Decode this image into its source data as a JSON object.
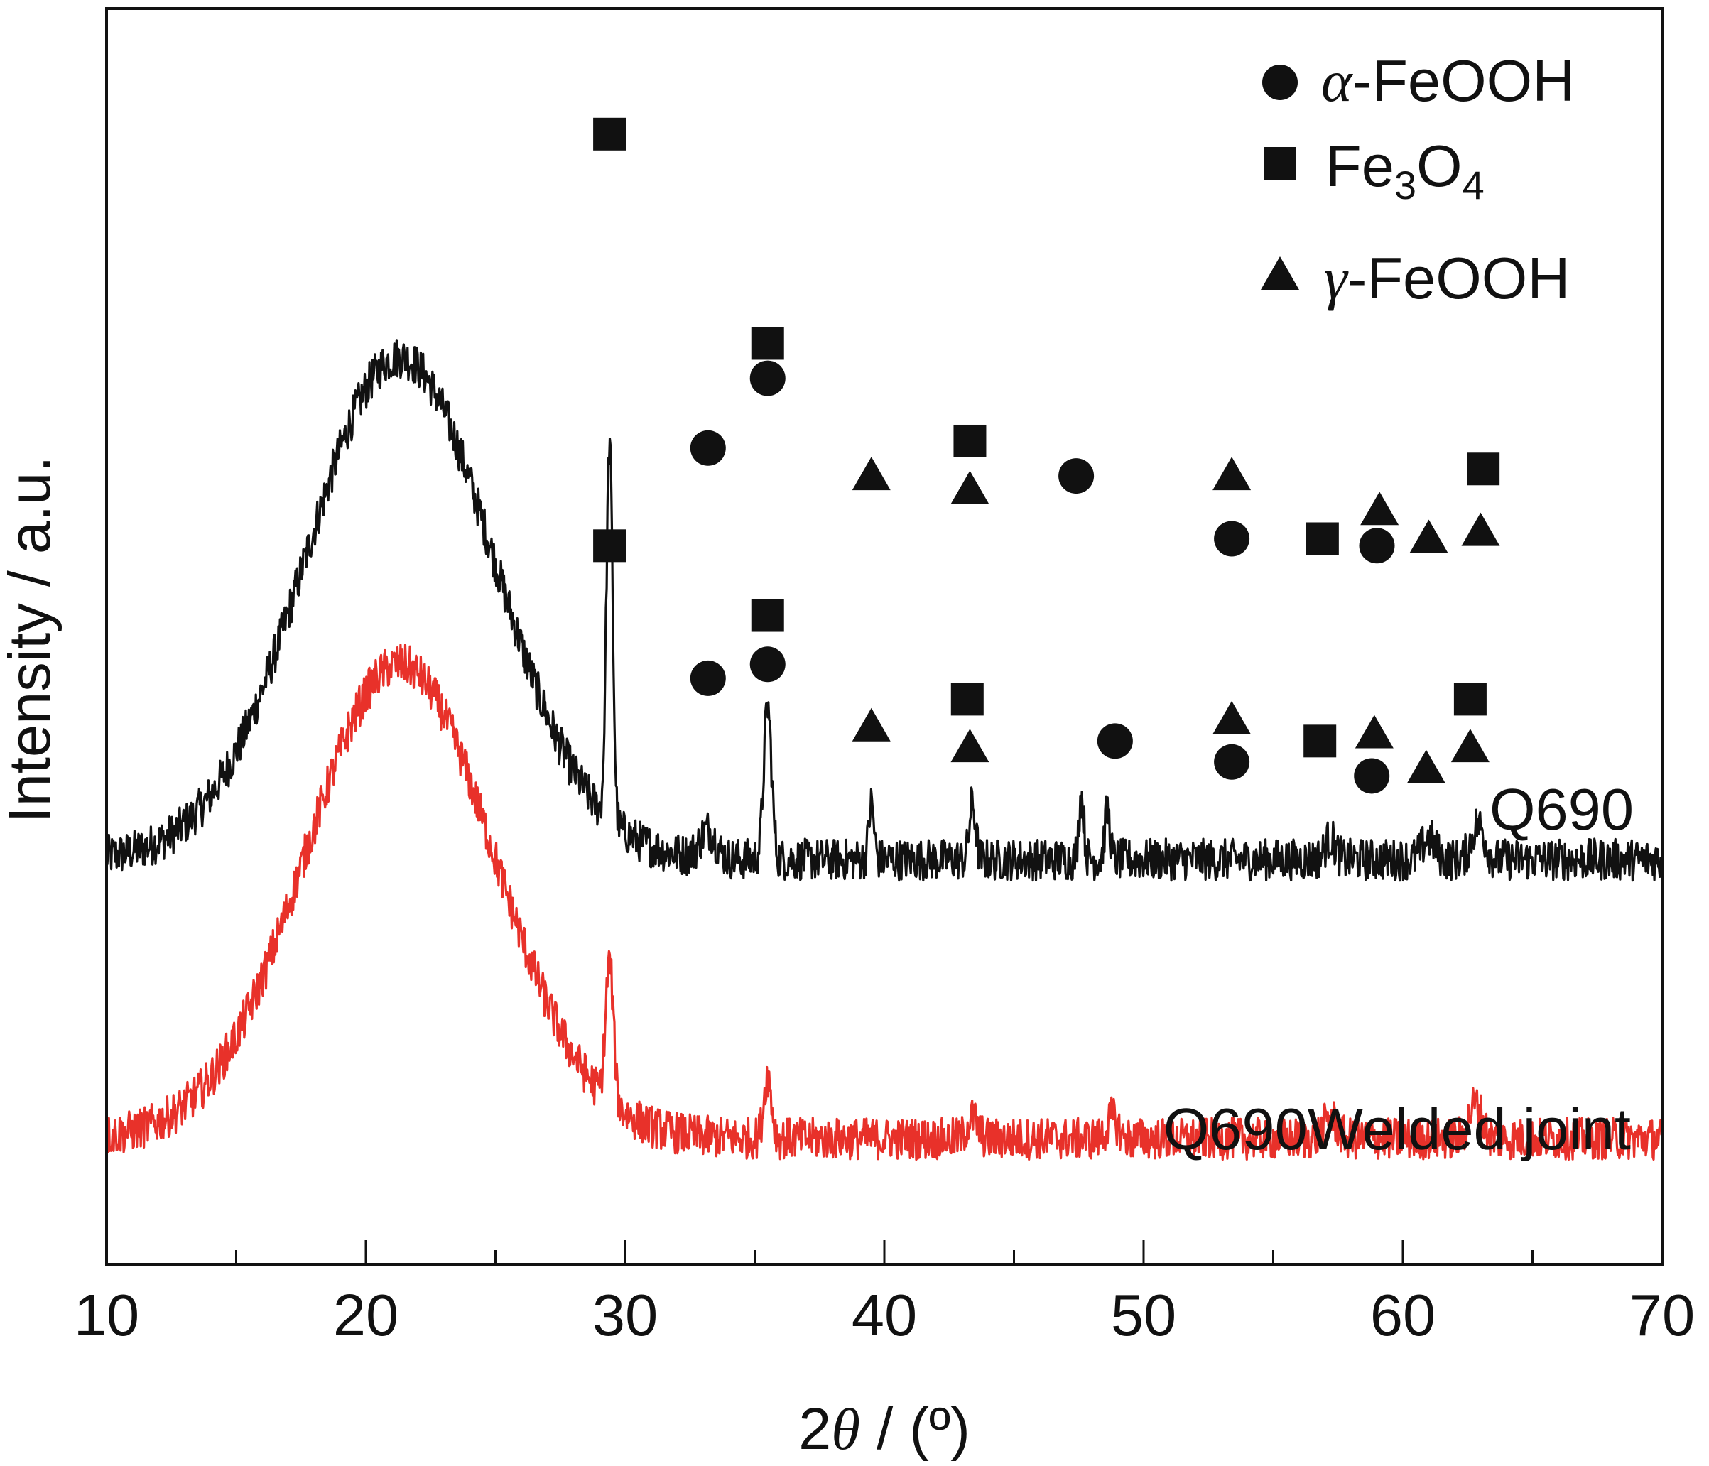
{
  "chart_data": {
    "type": "line",
    "xlabel_prefix": "2",
    "xlabel_symbol": "θ",
    "xlabel_suffix": " / (º)",
    "ylabel": "Intensity / a.u.",
    "xlim": [
      10,
      70
    ],
    "x_ticks": [
      "10",
      "20",
      "30",
      "40",
      "50",
      "60",
      "70"
    ],
    "y_ticks": [],
    "grid": false,
    "legend_position": "top-right",
    "legend": [
      {
        "marker": "circle",
        "symbol": "α",
        "text": "-FeOOH"
      },
      {
        "marker": "square",
        "text": "Fe",
        "sub1": "3",
        "text2": "O",
        "sub2": "4"
      },
      {
        "marker": "triangle",
        "symbol": "γ",
        "text": "-FeOOH"
      }
    ],
    "series": [
      {
        "name": "Q690",
        "color": "#111111",
        "offset": 0,
        "base": 18,
        "hump": {
          "center": 21.3,
          "height": 72,
          "width": 3.6
        },
        "peaks": [
          {
            "x": 29.4,
            "h": 54,
            "w": 0.12
          },
          {
            "x": 33.2,
            "h": 4,
            "w": 0.3
          },
          {
            "x": 35.5,
            "h": 22,
            "w": 0.15
          },
          {
            "x": 39.5,
            "h": 8,
            "w": 0.1
          },
          {
            "x": 43.4,
            "h": 8,
            "w": 0.12
          },
          {
            "x": 47.6,
            "h": 9,
            "w": 0.1
          },
          {
            "x": 48.6,
            "h": 7,
            "w": 0.1
          },
          {
            "x": 57.2,
            "h": 3,
            "w": 0.2
          },
          {
            "x": 61.0,
            "h": 3,
            "w": 0.25
          },
          {
            "x": 62.9,
            "h": 5,
            "w": 0.25
          }
        ]
      },
      {
        "name": "Q690Welded joint",
        "color": "#e8312a",
        "offset": -40,
        "base": 18,
        "hump": {
          "center": 21.3,
          "height": 68,
          "width": 3.6
        },
        "peaks": [
          {
            "x": 29.4,
            "h": 20,
            "w": 0.15
          },
          {
            "x": 35.5,
            "h": 9,
            "w": 0.15
          },
          {
            "x": 43.4,
            "h": 3,
            "w": 0.2
          },
          {
            "x": 48.8,
            "h": 3,
            "w": 0.2
          },
          {
            "x": 57.2,
            "h": 3,
            "w": 0.25
          },
          {
            "x": 62.8,
            "h": 5,
            "w": 0.25
          }
        ]
      }
    ],
    "annotations": [
      {
        "series": 0,
        "x": 29.4,
        "level": 122,
        "marker": "square"
      },
      {
        "series": 0,
        "x": 35.5,
        "level": 92,
        "marker": "square"
      },
      {
        "series": 0,
        "x": 35.5,
        "level": 87,
        "marker": "circle"
      },
      {
        "series": 0,
        "x": 33.2,
        "level": 77,
        "marker": "circle"
      },
      {
        "series": 0,
        "x": 39.5,
        "level": 73,
        "marker": "triangle"
      },
      {
        "series": 0,
        "x": 43.3,
        "level": 78,
        "marker": "square"
      },
      {
        "series": 0,
        "x": 43.3,
        "level": 71,
        "marker": "triangle"
      },
      {
        "series": 0,
        "x": 47.4,
        "level": 73,
        "marker": "circle"
      },
      {
        "series": 0,
        "x": 53.4,
        "level": 73,
        "marker": "triangle"
      },
      {
        "series": 0,
        "x": 53.4,
        "level": 64,
        "marker": "circle"
      },
      {
        "series": 0,
        "x": 56.9,
        "level": 64,
        "marker": "square"
      },
      {
        "series": 0,
        "x": 59.1,
        "level": 68,
        "marker": "triangle"
      },
      {
        "series": 0,
        "x": 59.0,
        "level": 63,
        "marker": "circle"
      },
      {
        "series": 0,
        "x": 61.0,
        "level": 64,
        "marker": "triangle"
      },
      {
        "series": 0,
        "x": 63.1,
        "level": 74,
        "marker": "square"
      },
      {
        "series": 0,
        "x": 63.0,
        "level": 65,
        "marker": "triangle"
      },
      {
        "series": 1,
        "x": 29.4,
        "level": 63,
        "marker": "square"
      },
      {
        "series": 1,
        "x": 35.5,
        "level": 53,
        "marker": "square"
      },
      {
        "series": 1,
        "x": 35.5,
        "level": 46,
        "marker": "circle"
      },
      {
        "series": 1,
        "x": 33.2,
        "level": 44,
        "marker": "circle"
      },
      {
        "series": 1,
        "x": 39.5,
        "level": 37,
        "marker": "triangle"
      },
      {
        "series": 1,
        "x": 43.2,
        "level": 41,
        "marker": "square"
      },
      {
        "series": 1,
        "x": 43.3,
        "level": 34,
        "marker": "triangle"
      },
      {
        "series": 1,
        "x": 48.9,
        "level": 35,
        "marker": "circle"
      },
      {
        "series": 1,
        "x": 53.4,
        "level": 38,
        "marker": "triangle"
      },
      {
        "series": 1,
        "x": 53.4,
        "level": 32,
        "marker": "circle"
      },
      {
        "series": 1,
        "x": 56.8,
        "level": 35,
        "marker": "square"
      },
      {
        "series": 1,
        "x": 58.9,
        "level": 36,
        "marker": "triangle"
      },
      {
        "series": 1,
        "x": 58.8,
        "level": 30,
        "marker": "circle"
      },
      {
        "series": 1,
        "x": 60.9,
        "level": 31,
        "marker": "triangle"
      },
      {
        "series": 1,
        "x": 62.6,
        "level": 41,
        "marker": "square"
      },
      {
        "series": 1,
        "x": 62.6,
        "level": 34,
        "marker": "triangle"
      }
    ]
  }
}
